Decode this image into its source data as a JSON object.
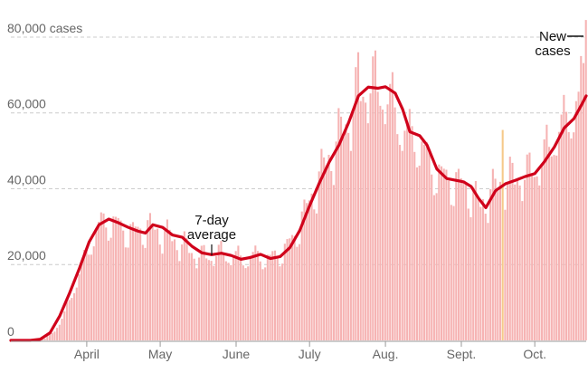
{
  "colors": {
    "bar": "#f6b3b3",
    "bar_highlight": "#f5c98a",
    "line": "#d0021b",
    "axis": "#999999",
    "grid": "#cccccc",
    "text": "#666666",
    "annotation": "#111111"
  },
  "chart_data": {
    "type": "bar",
    "title": "",
    "xlabel": "",
    "ylabel": "cases",
    "ylim": [
      0,
      85000
    ],
    "y_ticks": [
      {
        "value": 0,
        "label": "0"
      },
      {
        "value": 20000,
        "label": "20,000"
      },
      {
        "value": 40000,
        "label": "40,000"
      },
      {
        "value": 60000,
        "label": "60,000"
      },
      {
        "value": 80000,
        "label": "80,000 cases"
      }
    ],
    "x_ticks": [
      {
        "day": 31,
        "label": "April"
      },
      {
        "day": 61,
        "label": "May"
      },
      {
        "day": 92,
        "label": "June"
      },
      {
        "day": 122,
        "label": "July"
      },
      {
        "day": 153,
        "label": "Aug."
      },
      {
        "day": 184,
        "label": "Sept."
      },
      {
        "day": 214,
        "label": "Oct."
      }
    ],
    "x_range": [
      0,
      235
    ],
    "series": [
      {
        "name": "New cases",
        "kind": "bars",
        "daily_profile": [
          [
            0,
            0
          ],
          [
            8,
            50
          ],
          [
            14,
            500
          ],
          [
            18,
            2500
          ],
          [
            22,
            7000
          ],
          [
            26,
            14000
          ],
          [
            30,
            21000
          ],
          [
            34,
            28000
          ],
          [
            38,
            31500
          ],
          [
            42,
            31000
          ],
          [
            46,
            29500
          ],
          [
            50,
            28500
          ],
          [
            56,
            30000
          ],
          [
            60,
            29000
          ],
          [
            66,
            27000
          ],
          [
            72,
            24500
          ],
          [
            78,
            22000
          ],
          [
            84,
            23000
          ],
          [
            90,
            22500
          ],
          [
            95,
            21500
          ],
          [
            100,
            22500
          ],
          [
            106,
            21500
          ],
          [
            112,
            24000
          ],
          [
            116,
            27500
          ],
          [
            120,
            33500
          ],
          [
            124,
            39500
          ],
          [
            128,
            46000
          ],
          [
            132,
            50500
          ],
          [
            136,
            56000
          ],
          [
            140,
            62000
          ],
          [
            144,
            67000
          ],
          [
            148,
            67500
          ],
          [
            152,
            66000
          ],
          [
            156,
            62000
          ],
          [
            160,
            56000
          ],
          [
            164,
            54000
          ],
          [
            168,
            51000
          ],
          [
            172,
            45500
          ],
          [
            176,
            43500
          ],
          [
            180,
            42000
          ],
          [
            184,
            41500
          ],
          [
            188,
            39500
          ],
          [
            192,
            35500
          ],
          [
            196,
            39000
          ],
          [
            200,
            41500
          ],
          [
            204,
            42500
          ],
          [
            208,
            43500
          ],
          [
            212,
            44000
          ],
          [
            216,
            47000
          ],
          [
            220,
            51000
          ],
          [
            224,
            56000
          ],
          [
            228,
            59000
          ],
          [
            232,
            63500
          ],
          [
            235,
            72000
          ]
        ],
        "notable_days": [
          {
            "day": 142,
            "value": 76000
          },
          {
            "day": 201,
            "value": 55500,
            "highlight": true
          },
          {
            "day": 233,
            "value": 75000
          },
          {
            "day": 235,
            "value": 84500
          }
        ]
      },
      {
        "name": "7-day average",
        "kind": "line",
        "points": [
          [
            0,
            0
          ],
          [
            8,
            0
          ],
          [
            12,
            300
          ],
          [
            16,
            2000
          ],
          [
            20,
            6500
          ],
          [
            24,
            12500
          ],
          [
            28,
            19000
          ],
          [
            32,
            26000
          ],
          [
            36,
            30500
          ],
          [
            40,
            32000
          ],
          [
            44,
            31000
          ],
          [
            48,
            29800
          ],
          [
            52,
            28800
          ],
          [
            55,
            28300
          ],
          [
            58,
            30500
          ],
          [
            62,
            29800
          ],
          [
            66,
            27800
          ],
          [
            70,
            27200
          ],
          [
            74,
            24800
          ],
          [
            78,
            23100
          ],
          [
            82,
            22600
          ],
          [
            86,
            23000
          ],
          [
            90,
            22400
          ],
          [
            94,
            21400
          ],
          [
            98,
            21900
          ],
          [
            102,
            22700
          ],
          [
            106,
            21600
          ],
          [
            110,
            22100
          ],
          [
            114,
            24500
          ],
          [
            118,
            29000
          ],
          [
            122,
            35500
          ],
          [
            126,
            41500
          ],
          [
            130,
            47000
          ],
          [
            134,
            51500
          ],
          [
            138,
            57500
          ],
          [
            142,
            64500
          ],
          [
            146,
            66800
          ],
          [
            150,
            66500
          ],
          [
            153,
            66900
          ],
          [
            157,
            65200
          ],
          [
            160,
            61000
          ],
          [
            163,
            55000
          ],
          [
            167,
            54000
          ],
          [
            170,
            51500
          ],
          [
            174,
            45200
          ],
          [
            178,
            42700
          ],
          [
            182,
            42200
          ],
          [
            185,
            41800
          ],
          [
            188,
            40600
          ],
          [
            191,
            37500
          ],
          [
            194,
            35000
          ],
          [
            198,
            39500
          ],
          [
            202,
            41300
          ],
          [
            206,
            42200
          ],
          [
            210,
            43200
          ],
          [
            214,
            44000
          ],
          [
            218,
            47200
          ],
          [
            222,
            51000
          ],
          [
            226,
            56000
          ],
          [
            230,
            58500
          ],
          [
            233,
            62000
          ],
          [
            235,
            64500
          ]
        ]
      }
    ],
    "annotations": [
      {
        "text_lines": [
          "7-day",
          "average"
        ],
        "series": "7-day average",
        "day": 87
      },
      {
        "text_lines": [
          "New",
          "cases"
        ],
        "series": "New cases",
        "day": 235
      }
    ]
  }
}
